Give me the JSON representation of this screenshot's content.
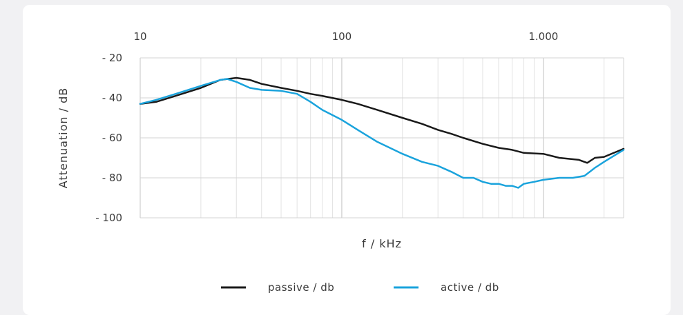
{
  "chart_data": {
    "type": "line",
    "xscale": "log",
    "xlim": [
      10,
      2500
    ],
    "ylim": [
      -100,
      -20
    ],
    "grid": true,
    "legend_position": "bottom",
    "xlabel": "f / kHz",
    "ylabel": "Attenuation / dB",
    "x_ticks": [
      10,
      100,
      1000
    ],
    "x_tick_labels": [
      "10",
      "100",
      "1.000"
    ],
    "y_ticks": [
      -20,
      -40,
      -60,
      -80,
      -100
    ],
    "y_tick_labels": [
      "- 20",
      "- 40",
      "- 60",
      "- 80",
      "- 100"
    ],
    "series": [
      {
        "name": "passive / db",
        "color": "#1a1a1a",
        "x": [
          10,
          12,
          15,
          20,
          25,
          30,
          35,
          40,
          50,
          60,
          70,
          80,
          100,
          120,
          150,
          200,
          250,
          300,
          350,
          400,
          500,
          600,
          700,
          800,
          1000,
          1200,
          1500,
          1650,
          1800,
          2000,
          2500
        ],
        "y": [
          -43,
          -42,
          -39,
          -35,
          -31,
          -30,
          -31,
          -33,
          -35,
          -36.5,
          -38,
          -39,
          -41,
          -43,
          -46,
          -50,
          -53,
          -56,
          -58,
          -60,
          -63,
          -65,
          -66,
          -67.5,
          -68,
          -70,
          -71,
          -72.5,
          -70,
          -69.5,
          -65.5
        ]
      },
      {
        "name": "active / db",
        "color": "#1aa3dc",
        "x": [
          10,
          12,
          15,
          20,
          25,
          27,
          30,
          35,
          40,
          50,
          60,
          70,
          80,
          100,
          120,
          150,
          200,
          250,
          300,
          350,
          400,
          450,
          500,
          550,
          600,
          650,
          700,
          750,
          800,
          900,
          1000,
          1200,
          1400,
          1600,
          1800,
          2000,
          2500
        ],
        "y": [
          -43,
          -41,
          -38,
          -34,
          -31,
          -30.5,
          -32,
          -35,
          -36,
          -36.5,
          -38,
          -42,
          -46,
          -51,
          -56,
          -62,
          -68,
          -72,
          -74,
          -77,
          -80,
          -80,
          -82,
          -83,
          -83,
          -84,
          -84,
          -85,
          -83,
          -82,
          -81,
          -80,
          -80,
          -79,
          -75,
          -72,
          -66
        ]
      }
    ]
  }
}
